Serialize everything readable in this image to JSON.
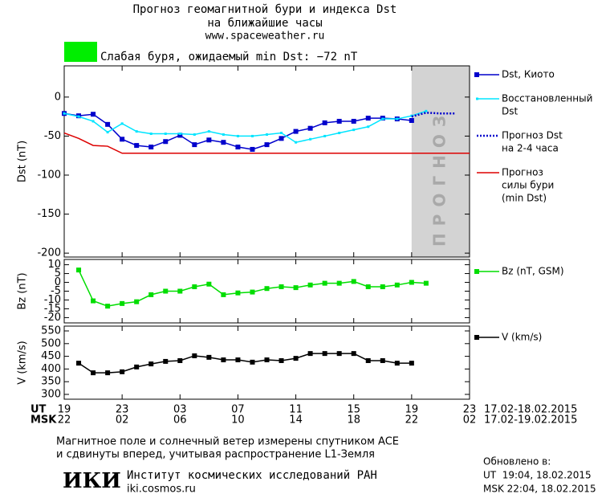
{
  "header": {
    "title": [
      "Прогноз геомагнитной бури и индекса Dst",
      "на ближайшие часы"
    ],
    "url": "www.spaceweather.ru",
    "storm_label": "Слабая буря, ожидаемый min Dst: −72 nT",
    "storm_color": "#00ee00"
  },
  "x_axis": {
    "xlim": [
      0,
      28
    ],
    "ticks": [
      {
        "value": 0,
        "label": "19"
      },
      {
        "value": 4,
        "label": "23"
      },
      {
        "value": 8,
        "label": "03"
      },
      {
        "value": 12,
        "label": "07"
      },
      {
        "value": 16,
        "label": "11"
      },
      {
        "value": 20,
        "label": "15"
      },
      {
        "value": 24,
        "label": "19"
      },
      {
        "value": 28,
        "label": "23"
      }
    ],
    "ticks2": [
      {
        "value": 0,
        "label": "22"
      },
      {
        "value": 4,
        "label": "02"
      },
      {
        "value": 8,
        "label": "06"
      },
      {
        "value": 12,
        "label": "10"
      },
      {
        "value": 16,
        "label": "14"
      },
      {
        "value": 20,
        "label": "18"
      },
      {
        "value": 24,
        "label": "22"
      },
      {
        "value": 28,
        "label": "02"
      }
    ],
    "row_labels": [
      "UT",
      "MSK"
    ],
    "dates": [
      "17.02-18.02.2015",
      "17.02-19.02.2015"
    ]
  },
  "chart_data": [
    {
      "type": "line",
      "ylabel": "Dst (nT)",
      "ylim": [
        -205,
        40
      ],
      "yticks": [
        0,
        -50,
        -100,
        -150,
        -200
      ],
      "forecast_band": {
        "x": [
          24,
          28
        ],
        "label": "ПРОГНОЗ",
        "color": "#d3d3d3"
      },
      "series": [
        {
          "name": [
            "Dst, Киото"
          ],
          "color": "#0000cc",
          "marker": "square",
          "dash": "solid",
          "x": [
            0,
            1,
            2,
            3,
            4,
            5,
            6,
            7,
            8,
            9,
            10,
            11,
            12,
            13,
            14,
            15,
            16,
            17,
            18,
            19,
            20,
            21,
            22,
            23,
            24
          ],
          "values": [
            -21,
            -24,
            -22,
            -35,
            -54,
            -62,
            -64,
            -57,
            -49,
            -61,
            -55,
            -58,
            -64,
            -67,
            -61,
            -53,
            -44,
            -40,
            -33,
            -31,
            -31,
            -27,
            -27,
            -28,
            -30
          ]
        },
        {
          "name": [
            "Восстановленный",
            "Dst"
          ],
          "color": "#00e5ff",
          "marker": "dot",
          "dash": "solid",
          "x": [
            0,
            1,
            2,
            3,
            4,
            5,
            6,
            7,
            8,
            9,
            10,
            11,
            12,
            13,
            14,
            15,
            16,
            17,
            18,
            19,
            20,
            21,
            22,
            23,
            24,
            25
          ],
          "values": [
            -21,
            -25,
            -31,
            -45,
            -34,
            -44,
            -47,
            -47,
            -47,
            -48,
            -44,
            -48,
            -50,
            -50,
            -48,
            -46,
            -58,
            -54,
            -50,
            -46,
            -42,
            -38,
            -28,
            -28,
            -24,
            -18
          ]
        },
        {
          "name": [
            "Прогноз Dst",
            "на 2-4 часа"
          ],
          "color": "#0000cc",
          "marker": "none",
          "dash": "dotted",
          "x": [
            24,
            25,
            26,
            27
          ],
          "values": [
            -25,
            -20,
            -21,
            -21
          ]
        },
        {
          "name": [
            "Прогноз",
            "силы бури",
            "(min Dst)"
          ],
          "color": "#dd0000",
          "marker": "none",
          "dash": "solid",
          "x": [
            0,
            1,
            2,
            3,
            4,
            28
          ],
          "values": [
            -46,
            -53,
            -62,
            -63,
            -72,
            -72
          ]
        }
      ]
    },
    {
      "type": "line",
      "ylabel": "Bz (nT)",
      "ylim": [
        -23,
        13
      ],
      "yticks": [
        10,
        5,
        0,
        -5,
        -10,
        -15,
        -20
      ],
      "series": [
        {
          "name": [
            "Bz (nT, GSM)"
          ],
          "color": "#00dd00",
          "marker": "square",
          "dash": "solid",
          "x": [
            1,
            2,
            3,
            4,
            5,
            6,
            7,
            8,
            9,
            10,
            11,
            12,
            13,
            14,
            15,
            16,
            17,
            18,
            19,
            20,
            21,
            22,
            23,
            24,
            25
          ],
          "values": [
            7,
            -10.5,
            -13.5,
            -12,
            -11,
            -7,
            -5,
            -5,
            -2.5,
            -1,
            -7,
            -6,
            -5.5,
            -3.5,
            -2.5,
            -3,
            -1.5,
            -0.5,
            -0.5,
            0.5,
            -2.5,
            -2.5,
            -1.5,
            0,
            -0.5
          ]
        }
      ]
    },
    {
      "type": "line",
      "ylabel": "V (km/s)",
      "ylim": [
        281,
        569
      ],
      "yticks": [
        550,
        500,
        450,
        400,
        350,
        300
      ],
      "series": [
        {
          "name": [
            "V (km/s)"
          ],
          "color": "#000000",
          "marker": "square",
          "dash": "solid",
          "x": [
            1,
            2,
            3,
            4,
            5,
            6,
            7,
            8,
            9,
            10,
            11,
            12,
            13,
            14,
            15,
            16,
            17,
            18,
            19,
            20,
            21,
            22,
            23,
            24
          ],
          "values": [
            423,
            385,
            385,
            389,
            408,
            420,
            430,
            433,
            452,
            446,
            436,
            436,
            427,
            436,
            433,
            442,
            461,
            461,
            461,
            461,
            433,
            433,
            423,
            423
          ]
        }
      ]
    }
  ],
  "footer": {
    "note": [
      "Магнитное поле и солнечный ветер измерены спутником ACE",
      "и сдвинуты вперед, учитывая распространение L1-Земля"
    ],
    "logo": "ИКИ",
    "institute": "Институт космических исследований РАН",
    "site": "iki.cosmos.ru",
    "updated": [
      "Обновлено в:",
      "UT  19:04, 18.02.2015",
      "MSK 22:04, 18.02.2015"
    ]
  }
}
